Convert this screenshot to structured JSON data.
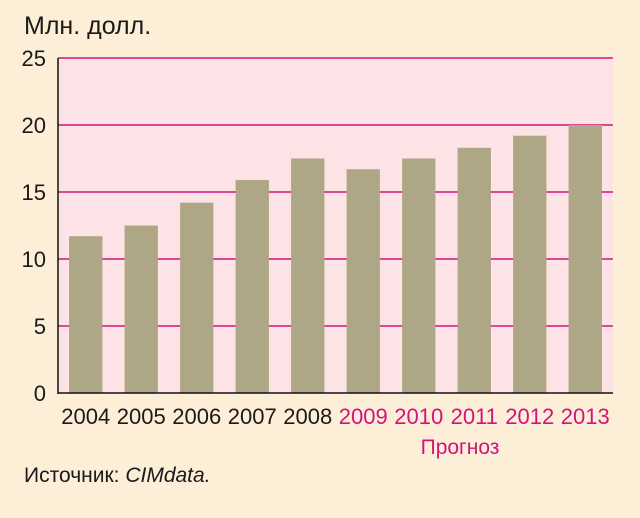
{
  "chart_data": {
    "type": "bar",
    "unit_label": "Млн. долл.",
    "categories": [
      "2004",
      "2005",
      "2006",
      "2007",
      "2008",
      "2009",
      "2010",
      "2011",
      "2012",
      "2013"
    ],
    "values": [
      11.7,
      12.5,
      14.2,
      15.9,
      17.5,
      16.7,
      17.5,
      18.3,
      19.2,
      20.0
    ],
    "forecast_from_index": 5,
    "forecast_label": "Прогноз",
    "y_ticks": [
      0,
      5,
      10,
      15,
      20,
      25
    ],
    "ylim": [
      0,
      25
    ],
    "grid": true,
    "source_label": "Источник:",
    "source_name": "CIMdata."
  },
  "colors": {
    "background": "#fdeed7",
    "plot_background": "#fde3e6",
    "bar": "#aea785",
    "grid": "#d3137d",
    "forecast_text": "#d3137d",
    "text": "#1a1a1a",
    "axis": "#111111"
  }
}
